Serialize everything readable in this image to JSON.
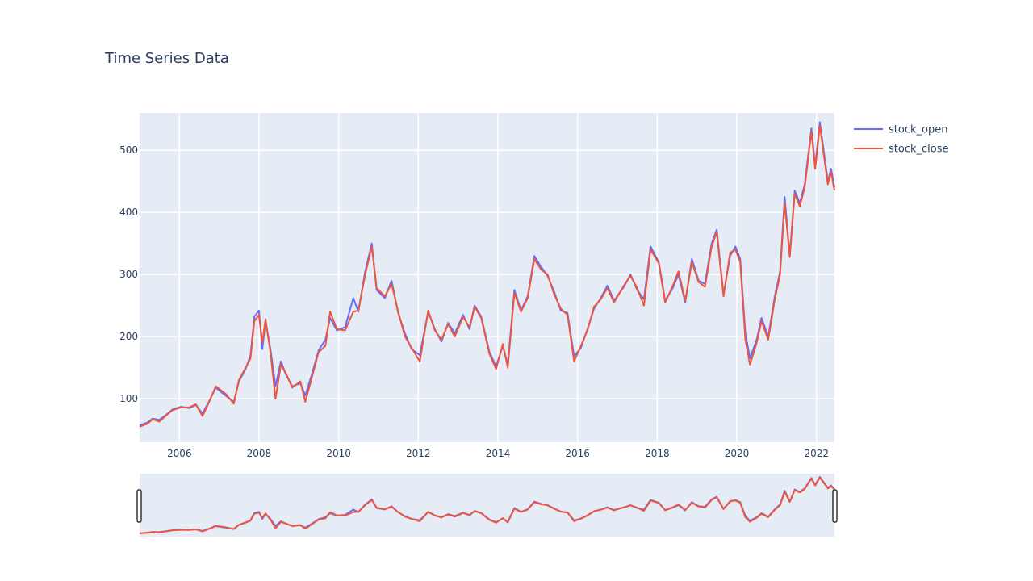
{
  "chart_data": {
    "type": "line",
    "title": "Time Series Data",
    "xlabel": "",
    "ylabel": "",
    "xlim": [
      "2005-01-01",
      "2022-06-15"
    ],
    "ylim": [
      30,
      560
    ],
    "x_ticks": [
      "2006",
      "2008",
      "2010",
      "2012",
      "2014",
      "2016",
      "2018",
      "2020",
      "2022"
    ],
    "y_ticks": [
      100,
      200,
      300,
      400,
      500
    ],
    "grid": true,
    "legend_position": "top-right",
    "rangeslider": true,
    "series": [
      {
        "name": "stock_open",
        "color": "#636efa",
        "points": [
          [
            "2005-01-01",
            57
          ],
          [
            "2005-03-15",
            62
          ],
          [
            "2005-05-01",
            68
          ],
          [
            "2005-07-01",
            66
          ],
          [
            "2005-09-01",
            74
          ],
          [
            "2005-11-01",
            83
          ],
          [
            "2006-01-15",
            87
          ],
          [
            "2006-04-01",
            85
          ],
          [
            "2006-06-01",
            90
          ],
          [
            "2006-08-01",
            76
          ],
          [
            "2006-10-01",
            96
          ],
          [
            "2006-12-01",
            118
          ],
          [
            "2007-03-01",
            105
          ],
          [
            "2007-05-15",
            95
          ],
          [
            "2007-07-01",
            128
          ],
          [
            "2007-09-01",
            148
          ],
          [
            "2007-10-15",
            170
          ],
          [
            "2007-11-20",
            232
          ],
          [
            "2008-01-01",
            242
          ],
          [
            "2008-02-01",
            180
          ],
          [
            "2008-03-01",
            225
          ],
          [
            "2008-04-15",
            180
          ],
          [
            "2008-06-01",
            120
          ],
          [
            "2008-07-20",
            160
          ],
          [
            "2008-09-01",
            140
          ],
          [
            "2008-11-01",
            120
          ],
          [
            "2009-01-15",
            125
          ],
          [
            "2009-03-01",
            105
          ],
          [
            "2009-05-01",
            140
          ],
          [
            "2009-07-01",
            178
          ],
          [
            "2009-09-01",
            195
          ],
          [
            "2009-10-15",
            230
          ],
          [
            "2009-12-15",
            210
          ],
          [
            "2010-03-01",
            215
          ],
          [
            "2010-05-15",
            262
          ],
          [
            "2010-07-01",
            240
          ],
          [
            "2010-09-01",
            305
          ],
          [
            "2010-11-01",
            350
          ],
          [
            "2010-12-15",
            275
          ],
          [
            "2011-03-01",
            262
          ],
          [
            "2011-05-01",
            290
          ],
          [
            "2011-07-01",
            238
          ],
          [
            "2011-09-01",
            205
          ],
          [
            "2011-11-01",
            180
          ],
          [
            "2012-01-15",
            170
          ],
          [
            "2012-04-01",
            240
          ],
          [
            "2012-06-01",
            212
          ],
          [
            "2012-08-01",
            192
          ],
          [
            "2012-10-01",
            222
          ],
          [
            "2012-12-01",
            205
          ],
          [
            "2013-02-15",
            235
          ],
          [
            "2013-04-15",
            212
          ],
          [
            "2013-06-01",
            250
          ],
          [
            "2013-08-01",
            232
          ],
          [
            "2013-10-15",
            175
          ],
          [
            "2013-12-15",
            152
          ],
          [
            "2014-02-15",
            185
          ],
          [
            "2014-04-01",
            155
          ],
          [
            "2014-06-01",
            275
          ],
          [
            "2014-08-01",
            242
          ],
          [
            "2014-10-01",
            265
          ],
          [
            "2014-12-01",
            330
          ],
          [
            "2015-02-01",
            312
          ],
          [
            "2015-04-01",
            298
          ],
          [
            "2015-06-01",
            272
          ],
          [
            "2015-08-01",
            242
          ],
          [
            "2015-10-01",
            238
          ],
          [
            "2015-12-01",
            168
          ],
          [
            "2016-02-01",
            182
          ],
          [
            "2016-04-01",
            212
          ],
          [
            "2016-06-01",
            245
          ],
          [
            "2016-08-01",
            262
          ],
          [
            "2016-10-01",
            282
          ],
          [
            "2016-12-01",
            258
          ],
          [
            "2017-03-01",
            280
          ],
          [
            "2017-05-01",
            300
          ],
          [
            "2017-07-01",
            275
          ],
          [
            "2017-09-01",
            260
          ],
          [
            "2017-11-01",
            345
          ],
          [
            "2018-01-15",
            320
          ],
          [
            "2018-03-15",
            258
          ],
          [
            "2018-05-15",
            275
          ],
          [
            "2018-07-15",
            300
          ],
          [
            "2018-09-15",
            255
          ],
          [
            "2018-11-15",
            325
          ],
          [
            "2019-01-15",
            290
          ],
          [
            "2019-03-15",
            285
          ],
          [
            "2019-05-15",
            350
          ],
          [
            "2019-07-01",
            372
          ],
          [
            "2019-09-01",
            268
          ],
          [
            "2019-11-01",
            330
          ],
          [
            "2019-12-20",
            345
          ],
          [
            "2020-02-01",
            325
          ],
          [
            "2020-03-20",
            205
          ],
          [
            "2020-05-01",
            165
          ],
          [
            "2020-07-01",
            195
          ],
          [
            "2020-08-15",
            230
          ],
          [
            "2020-10-15",
            200
          ],
          [
            "2020-12-15",
            265
          ],
          [
            "2021-02-01",
            305
          ],
          [
            "2021-03-15",
            425
          ],
          [
            "2021-05-01",
            330
          ],
          [
            "2021-06-15",
            435
          ],
          [
            "2021-08-01",
            415
          ],
          [
            "2021-09-15",
            445
          ],
          [
            "2021-11-15",
            535
          ],
          [
            "2021-12-20",
            475
          ],
          [
            "2022-02-01",
            545
          ],
          [
            "2022-03-15",
            490
          ],
          [
            "2022-04-15",
            450
          ],
          [
            "2022-05-15",
            470
          ],
          [
            "2022-06-15",
            440
          ]
        ]
      },
      {
        "name": "stock_close",
        "color": "#ef553b",
        "points": [
          [
            "2005-01-01",
            55
          ],
          [
            "2005-03-15",
            60
          ],
          [
            "2005-05-01",
            67
          ],
          [
            "2005-07-01",
            63
          ],
          [
            "2005-09-01",
            73
          ],
          [
            "2005-11-01",
            82
          ],
          [
            "2006-01-15",
            86
          ],
          [
            "2006-04-01",
            86
          ],
          [
            "2006-06-01",
            91
          ],
          [
            "2006-08-01",
            72
          ],
          [
            "2006-10-01",
            95
          ],
          [
            "2006-12-01",
            120
          ],
          [
            "2007-03-01",
            108
          ],
          [
            "2007-05-15",
            92
          ],
          [
            "2007-07-01",
            130
          ],
          [
            "2007-09-01",
            150
          ],
          [
            "2007-10-15",
            165
          ],
          [
            "2007-11-20",
            225
          ],
          [
            "2008-01-01",
            235
          ],
          [
            "2008-02-01",
            190
          ],
          [
            "2008-03-01",
            228
          ],
          [
            "2008-04-15",
            175
          ],
          [
            "2008-06-01",
            100
          ],
          [
            "2008-07-20",
            155
          ],
          [
            "2008-09-01",
            142
          ],
          [
            "2008-11-01",
            118
          ],
          [
            "2009-01-15",
            128
          ],
          [
            "2009-03-01",
            95
          ],
          [
            "2009-05-01",
            135
          ],
          [
            "2009-07-01",
            175
          ],
          [
            "2009-09-01",
            185
          ],
          [
            "2009-10-15",
            240
          ],
          [
            "2009-12-15",
            212
          ],
          [
            "2010-03-01",
            210
          ],
          [
            "2010-05-15",
            240
          ],
          [
            "2010-07-01",
            242
          ],
          [
            "2010-09-01",
            300
          ],
          [
            "2010-11-01",
            345
          ],
          [
            "2010-12-15",
            278
          ],
          [
            "2011-03-01",
            265
          ],
          [
            "2011-05-01",
            285
          ],
          [
            "2011-07-01",
            240
          ],
          [
            "2011-09-01",
            200
          ],
          [
            "2011-11-01",
            182
          ],
          [
            "2012-01-15",
            160
          ],
          [
            "2012-04-01",
            242
          ],
          [
            "2012-06-01",
            210
          ],
          [
            "2012-08-01",
            195
          ],
          [
            "2012-10-01",
            220
          ],
          [
            "2012-12-01",
            200
          ],
          [
            "2013-02-15",
            232
          ],
          [
            "2013-04-15",
            215
          ],
          [
            "2013-06-01",
            248
          ],
          [
            "2013-08-01",
            230
          ],
          [
            "2013-10-15",
            172
          ],
          [
            "2013-12-15",
            148
          ],
          [
            "2014-02-15",
            188
          ],
          [
            "2014-04-01",
            150
          ],
          [
            "2014-06-01",
            270
          ],
          [
            "2014-08-01",
            240
          ],
          [
            "2014-10-01",
            262
          ],
          [
            "2014-12-01",
            325
          ],
          [
            "2015-02-01",
            308
          ],
          [
            "2015-04-01",
            300
          ],
          [
            "2015-06-01",
            268
          ],
          [
            "2015-08-01",
            245
          ],
          [
            "2015-10-01",
            235
          ],
          [
            "2015-12-01",
            160
          ],
          [
            "2016-02-01",
            185
          ],
          [
            "2016-04-01",
            210
          ],
          [
            "2016-06-01",
            248
          ],
          [
            "2016-08-01",
            260
          ],
          [
            "2016-10-01",
            278
          ],
          [
            "2016-12-01",
            255
          ],
          [
            "2017-03-01",
            282
          ],
          [
            "2017-05-01",
            298
          ],
          [
            "2017-07-01",
            278
          ],
          [
            "2017-09-01",
            250
          ],
          [
            "2017-11-01",
            340
          ],
          [
            "2018-01-15",
            318
          ],
          [
            "2018-03-15",
            255
          ],
          [
            "2018-05-15",
            278
          ],
          [
            "2018-07-15",
            305
          ],
          [
            "2018-09-15",
            258
          ],
          [
            "2018-11-15",
            320
          ],
          [
            "2019-01-15",
            288
          ],
          [
            "2019-03-15",
            280
          ],
          [
            "2019-05-15",
            345
          ],
          [
            "2019-07-01",
            368
          ],
          [
            "2019-09-01",
            265
          ],
          [
            "2019-11-01",
            335
          ],
          [
            "2019-12-20",
            340
          ],
          [
            "2020-02-01",
            320
          ],
          [
            "2020-03-20",
            195
          ],
          [
            "2020-05-01",
            155
          ],
          [
            "2020-07-01",
            190
          ],
          [
            "2020-08-15",
            225
          ],
          [
            "2020-10-15",
            195
          ],
          [
            "2020-12-15",
            260
          ],
          [
            "2021-02-01",
            300
          ],
          [
            "2021-03-15",
            415
          ],
          [
            "2021-05-01",
            328
          ],
          [
            "2021-06-15",
            430
          ],
          [
            "2021-08-01",
            410
          ],
          [
            "2021-09-15",
            440
          ],
          [
            "2021-11-15",
            530
          ],
          [
            "2021-12-20",
            470
          ],
          [
            "2022-02-01",
            540
          ],
          [
            "2022-03-15",
            485
          ],
          [
            "2022-04-15",
            445
          ],
          [
            "2022-05-15",
            465
          ],
          [
            "2022-06-15",
            435
          ]
        ]
      }
    ]
  }
}
